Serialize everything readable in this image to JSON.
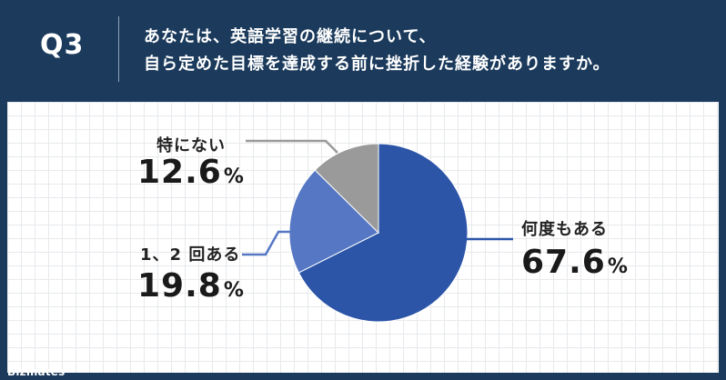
{
  "header": {
    "question_number": "Q3",
    "question_line1": "あなたは、英語学習の継続について、",
    "question_line2": "自ら定めた目標を達成する前に挫折した経験がありますか。"
  },
  "chart_data": {
    "type": "pie",
    "slices": [
      {
        "label": "何度もある",
        "value": 67.6,
        "display": "67.6",
        "color": "#2c55a8"
      },
      {
        "label": "1、2 回ある",
        "value": 19.8,
        "display": "19.8",
        "color": "#5577c4"
      },
      {
        "label": "特にない",
        "value": 12.6,
        "display": "12.6",
        "color": "#9a9a9a"
      }
    ],
    "unit": "%",
    "start": "12 o'clock",
    "direction": "clockwise"
  },
  "branding": {
    "logo_text": "Bizmates"
  }
}
